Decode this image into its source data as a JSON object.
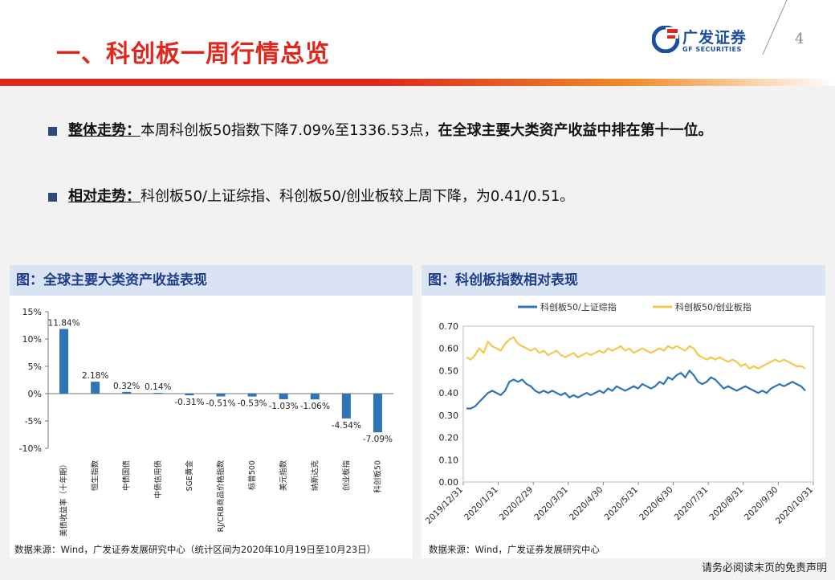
{
  "header": {
    "title": "一、科创板一周行情总览",
    "logo_cn": "广发证券",
    "logo_en": "GF SECURITIES",
    "page_number": "4"
  },
  "bullets": [
    {
      "head": "整体走势：",
      "text": "本周科创板50指数下降7.09%至1336.53点，",
      "bold_text": "在全球主要大类资产收益中排在第十一位。"
    },
    {
      "head": "相对走势：",
      "text": "科创板50/上证综指、科创板50/创业板较上周下降，为0.41/0.51。",
      "bold_text": ""
    }
  ],
  "left_panel": {
    "title": "图：全球主要大类资产收益表现",
    "source": "数据来源：Wind，广发证券发展研究中心（统计区间为2020年10月19日至10月23日）"
  },
  "right_panel": {
    "title": "图：科创板指数相对表现",
    "source": "数据来源：Wind，广发证券发展研究中心"
  },
  "footer": {
    "disclaimer": "请务必阅读末页的免责声明"
  },
  "colors": {
    "accent_red": "#e1261c",
    "bar_blue": "#2e75b6",
    "line_blue": "#2e75b6",
    "line_yellow": "#f2c94c",
    "panel_head": "#d9e3f3"
  },
  "chart_data": [
    {
      "type": "bar",
      "categories": [
        "美债收益率（十年期）",
        "恒生指数",
        "中债国债",
        "中债信用债",
        "SGE黄金",
        "RJ/CRB商品价格指数",
        "标普500",
        "美元指数",
        "纳斯达克",
        "创业板指",
        "科创板50"
      ],
      "values": [
        11.84,
        2.18,
        0.32,
        0.14,
        -0.31,
        -0.51,
        -0.53,
        -1.03,
        -1.06,
        -4.54,
        -7.09
      ],
      "data_labels": [
        "11.84%",
        "2.18%",
        "0.32%",
        "0.14%",
        "-0.31%",
        "-0.51%",
        "-0.53%",
        "-1.03%",
        "-1.06%",
        "-4.54%",
        "-7.09%"
      ],
      "y_ticks": [
        "15%",
        "10%",
        "5%",
        "0%",
        "-5%",
        "-10%"
      ],
      "ylim": [
        -10,
        15
      ],
      "grid": false
    },
    {
      "type": "line",
      "x_ticks": [
        "2019/12/31",
        "2020/1/31",
        "2020/2/29",
        "2020/3/31",
        "2020/4/30",
        "2020/5/31",
        "2020/6/30",
        "2020/7/31",
        "2020/8/31",
        "2020/9/30",
        "2020/10/31"
      ],
      "y_ticks": [
        "0.70",
        "0.60",
        "0.50",
        "0.40",
        "0.30",
        "0.20",
        "0.10",
        "0.00"
      ],
      "ylim": [
        0,
        0.7
      ],
      "legend_position": "top",
      "series": [
        {
          "name": "科创板50/上证综指",
          "color": "#2e75b6",
          "values": [
            0.33,
            0.33,
            0.34,
            0.36,
            0.38,
            0.4,
            0.41,
            0.4,
            0.39,
            0.41,
            0.45,
            0.46,
            0.45,
            0.46,
            0.44,
            0.43,
            0.41,
            0.4,
            0.41,
            0.4,
            0.41,
            0.4,
            0.39,
            0.4,
            0.38,
            0.39,
            0.38,
            0.39,
            0.4,
            0.39,
            0.4,
            0.41,
            0.4,
            0.42,
            0.41,
            0.43,
            0.42,
            0.41,
            0.42,
            0.43,
            0.42,
            0.44,
            0.43,
            0.42,
            0.43,
            0.45,
            0.44,
            0.47,
            0.46,
            0.48,
            0.49,
            0.47,
            0.5,
            0.48,
            0.45,
            0.44,
            0.45,
            0.47,
            0.46,
            0.44,
            0.42,
            0.43,
            0.42,
            0.41,
            0.42,
            0.43,
            0.42,
            0.41,
            0.4,
            0.41,
            0.4,
            0.42,
            0.43,
            0.44,
            0.43,
            0.44,
            0.45,
            0.44,
            0.43,
            0.41
          ]
        },
        {
          "name": "科创板50/创业板指",
          "color": "#f2c94c",
          "values": [
            0.56,
            0.55,
            0.57,
            0.6,
            0.58,
            0.63,
            0.61,
            0.6,
            0.59,
            0.62,
            0.64,
            0.65,
            0.62,
            0.61,
            0.6,
            0.59,
            0.6,
            0.58,
            0.59,
            0.57,
            0.58,
            0.59,
            0.57,
            0.56,
            0.57,
            0.58,
            0.56,
            0.57,
            0.58,
            0.57,
            0.58,
            0.59,
            0.58,
            0.6,
            0.59,
            0.6,
            0.61,
            0.59,
            0.6,
            0.58,
            0.59,
            0.6,
            0.59,
            0.58,
            0.59,
            0.6,
            0.59,
            0.61,
            0.6,
            0.61,
            0.6,
            0.59,
            0.61,
            0.6,
            0.57,
            0.56,
            0.55,
            0.56,
            0.55,
            0.56,
            0.55,
            0.54,
            0.55,
            0.54,
            0.52,
            0.53,
            0.51,
            0.52,
            0.51,
            0.52,
            0.53,
            0.54,
            0.55,
            0.54,
            0.55,
            0.54,
            0.53,
            0.52,
            0.52,
            0.51
          ]
        }
      ]
    }
  ]
}
